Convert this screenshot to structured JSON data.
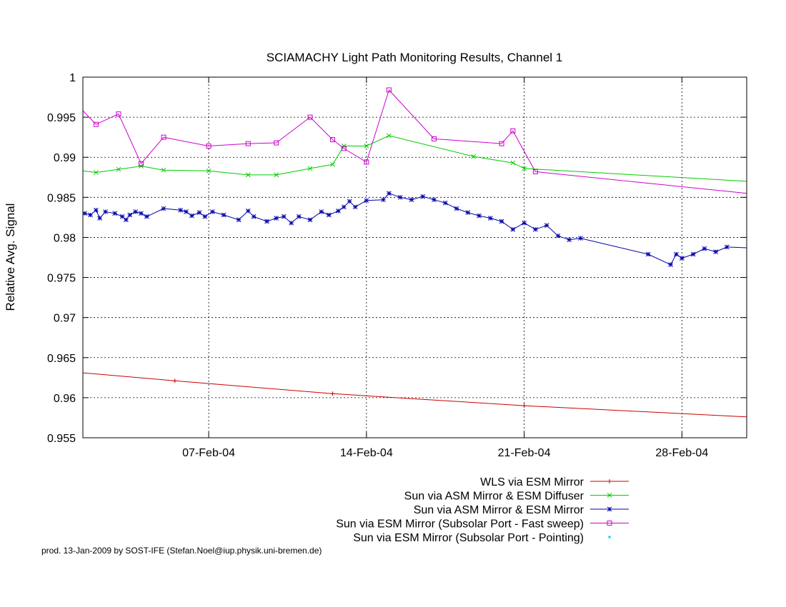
{
  "footer": "prod. 13-Jan-2009 by SOST-IFE (Stefan.Noel@iup.physik.uni-bremen.de)",
  "chart_data": {
    "type": "line",
    "title": "SCIAMACHY Light Path Monitoring Results, Channel 1",
    "xlabel": "",
    "ylabel": "Relative Avg. Signal",
    "xlim": [
      "2004-02-01T10:00",
      "2004-03-01T21:00"
    ],
    "ylim": [
      0.955,
      1.0
    ],
    "y_ticks": [
      0.955,
      0.96,
      0.965,
      0.97,
      0.975,
      0.98,
      0.985,
      0.99,
      0.995,
      1
    ],
    "y_tick_labels": [
      "0.955",
      "0.96",
      "0.965",
      "0.97",
      "0.975",
      "0.98",
      "0.985",
      "0.99",
      "0.995",
      "1"
    ],
    "x_ticks": [
      "2004-02-07",
      "2004-02-14",
      "2004-02-21",
      "2004-02-28"
    ],
    "x_tick_labels": [
      "07-Feb-04",
      "14-Feb-04",
      "21-Feb-04",
      "28-Feb-04"
    ],
    "grid": "dotted",
    "legend_position": "bottom-right, below plot",
    "series": [
      {
        "name": "WLS via ESM Mirror",
        "color": "#cc0000",
        "marker": "plus",
        "points": [
          [
            "2004-02-01T10:00",
            0.9631
          ],
          [
            "2004-02-05T12:00",
            0.9621
          ],
          [
            "2004-02-12T12:00",
            0.9605
          ],
          [
            "2004-02-21T00:00",
            0.959
          ],
          [
            "2004-03-01T21:00",
            0.9576
          ]
        ]
      },
      {
        "name": "Sun via ASM Mirror & ESM Diffuser",
        "color": "#00cc00",
        "marker": "cross",
        "points": [
          [
            "2004-02-01T10:00",
            0.9883
          ],
          [
            "2004-02-02T00:00",
            0.9881
          ],
          [
            "2004-02-03T00:00",
            0.9885
          ],
          [
            "2004-02-04T00:00",
            0.9889
          ],
          [
            "2004-02-05T00:00",
            0.9884
          ],
          [
            "2004-02-07T00:00",
            0.9883
          ],
          [
            "2004-02-08T18:00",
            0.9878
          ],
          [
            "2004-02-10T00:00",
            0.9878
          ],
          [
            "2004-02-11T12:00",
            0.9886
          ],
          [
            "2004-02-12T12:00",
            0.9891
          ],
          [
            "2004-02-13T00:00",
            0.9914
          ],
          [
            "2004-02-14T00:00",
            0.9914
          ],
          [
            "2004-02-15T00:00",
            0.9927
          ],
          [
            "2004-02-18T18:00",
            0.9901
          ],
          [
            "2004-02-20T12:00",
            0.9893
          ],
          [
            "2004-02-21T00:00",
            0.9886
          ],
          [
            "2004-03-01T21:00",
            0.987
          ]
        ]
      },
      {
        "name": "Sun via ASM Mirror & ESM Mirror",
        "color": "#0000aa",
        "marker": "star",
        "points": [
          [
            "2004-02-01T12:00",
            0.983
          ],
          [
            "2004-02-01T18:00",
            0.9828
          ],
          [
            "2004-02-02T00:00",
            0.9834
          ],
          [
            "2004-02-02T04:00",
            0.9824
          ],
          [
            "2004-02-02T10:00",
            0.9832
          ],
          [
            "2004-02-02T20:00",
            0.983
          ],
          [
            "2004-02-03T04:00",
            0.9826
          ],
          [
            "2004-02-03T08:00",
            0.9822
          ],
          [
            "2004-02-03T12:00",
            0.9828
          ],
          [
            "2004-02-03T18:00",
            0.9832
          ],
          [
            "2004-02-04T00:00",
            0.983
          ],
          [
            "2004-02-04T06:00",
            0.9826
          ],
          [
            "2004-02-05T00:00",
            0.9836
          ],
          [
            "2004-02-05T18:00",
            0.9834
          ],
          [
            "2004-02-06T00:00",
            0.9832
          ],
          [
            "2004-02-06T06:00",
            0.9827
          ],
          [
            "2004-02-06T14:00",
            0.9831
          ],
          [
            "2004-02-06T20:00",
            0.9826
          ],
          [
            "2004-02-07T04:00",
            0.9832
          ],
          [
            "2004-02-07T16:00",
            0.9828
          ],
          [
            "2004-02-08T08:00",
            0.9822
          ],
          [
            "2004-02-08T18:00",
            0.9833
          ],
          [
            "2004-02-09T00:00",
            0.9826
          ],
          [
            "2004-02-09T14:00",
            0.982
          ],
          [
            "2004-02-10T00:00",
            0.9824
          ],
          [
            "2004-02-10T08:00",
            0.9826
          ],
          [
            "2004-02-10T16:00",
            0.9818
          ],
          [
            "2004-02-11T00:00",
            0.9826
          ],
          [
            "2004-02-11T12:00",
            0.9822
          ],
          [
            "2004-02-12T00:00",
            0.9832
          ],
          [
            "2004-02-12T08:00",
            0.9828
          ],
          [
            "2004-02-12T18:00",
            0.9833
          ],
          [
            "2004-02-13T00:00",
            0.9838
          ],
          [
            "2004-02-13T06:00",
            0.9845
          ],
          [
            "2004-02-13T12:00",
            0.9838
          ],
          [
            "2004-02-14T00:00",
            0.9846
          ],
          [
            "2004-02-14T18:00",
            0.9847
          ],
          [
            "2004-02-15T00:00",
            0.9855
          ],
          [
            "2004-02-15T12:00",
            0.985
          ],
          [
            "2004-02-16T00:00",
            0.9847
          ],
          [
            "2004-02-16T12:00",
            0.9851
          ],
          [
            "2004-02-17T00:00",
            0.9847
          ],
          [
            "2004-02-17T12:00",
            0.9843
          ],
          [
            "2004-02-18T00:00",
            0.9836
          ],
          [
            "2004-02-18T12:00",
            0.9831
          ],
          [
            "2004-02-19T00:00",
            0.9827
          ],
          [
            "2004-02-19T12:00",
            0.9824
          ],
          [
            "2004-02-20T00:00",
            0.982
          ],
          [
            "2004-02-20T12:00",
            0.981
          ],
          [
            "2004-02-21T00:00",
            0.9818
          ],
          [
            "2004-02-21T12:00",
            0.981
          ],
          [
            "2004-02-22T00:00",
            0.9815
          ],
          [
            "2004-02-22T12:00",
            0.9802
          ],
          [
            "2004-02-23T00:00",
            0.9797
          ],
          [
            "2004-02-23T12:00",
            0.9799
          ],
          [
            "2004-02-26T12:00",
            0.9779
          ],
          [
            "2004-02-27T12:00",
            0.9766
          ],
          [
            "2004-02-27T18:00",
            0.9779
          ],
          [
            "2004-02-28T00:00",
            0.9774
          ],
          [
            "2004-02-28T12:00",
            0.9779
          ],
          [
            "2004-02-29T00:00",
            0.9786
          ],
          [
            "2004-02-29T12:00",
            0.9782
          ],
          [
            "2004-03-01T00:00",
            0.9788
          ],
          [
            "2004-03-01T21:00",
            0.9787
          ]
        ]
      },
      {
        "name": "Sun via ESM Mirror (Subsolar Port - Fast sweep)",
        "color": "#cc00cc",
        "marker": "square",
        "points": [
          [
            "2004-02-01T10:00",
            0.9958
          ],
          [
            "2004-02-02T00:00",
            0.9941
          ],
          [
            "2004-02-03T00:00",
            0.9954
          ],
          [
            "2004-02-04T00:00",
            0.9892
          ],
          [
            "2004-02-05T00:00",
            0.9925
          ],
          [
            "2004-02-07T00:00",
            0.9914
          ],
          [
            "2004-02-08T18:00",
            0.9917
          ],
          [
            "2004-02-10T00:00",
            0.9918
          ],
          [
            "2004-02-11T12:00",
            0.995
          ],
          [
            "2004-02-12T12:00",
            0.9922
          ],
          [
            "2004-02-13T00:00",
            0.9911
          ],
          [
            "2004-02-14T00:00",
            0.9894
          ],
          [
            "2004-02-15T00:00",
            0.9984
          ],
          [
            "2004-02-17T00:00",
            0.9923
          ],
          [
            "2004-02-20T00:00",
            0.9917
          ],
          [
            "2004-02-20T12:00",
            0.9933
          ],
          [
            "2004-02-21T12:00",
            0.9882
          ],
          [
            "2004-03-01T21:00",
            0.9855
          ]
        ]
      },
      {
        "name": "Sun via ESM Mirror (Subsolar Port - Pointing)",
        "color": "#00ccff",
        "marker": "point",
        "points": []
      }
    ]
  }
}
